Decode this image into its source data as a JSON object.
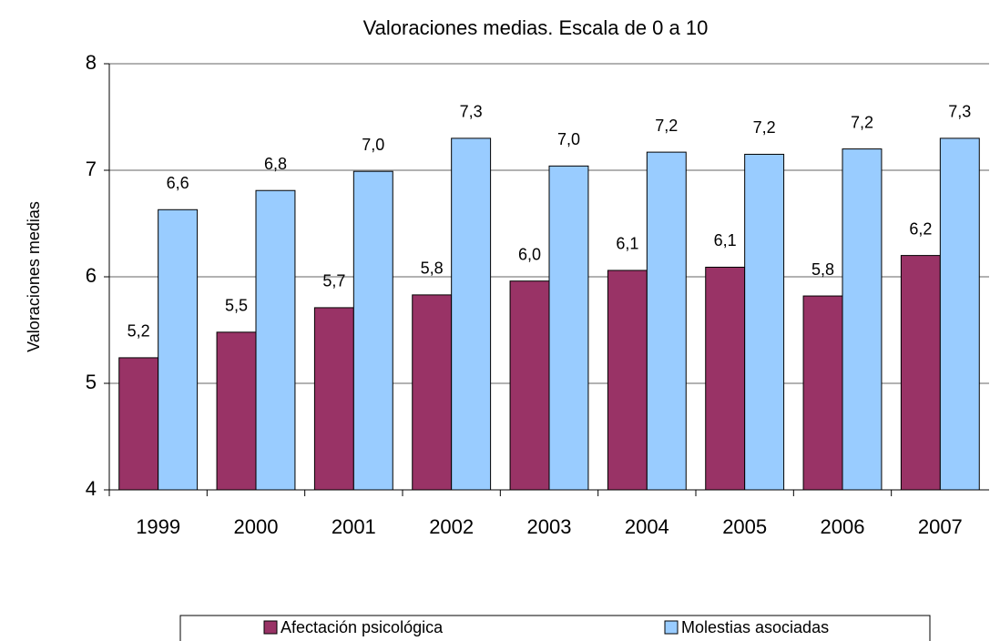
{
  "chart_data": {
    "type": "bar",
    "title": "Valoraciones medias. Escala de 0 a 10",
    "y_label": "Valoraciones medias",
    "categories": [
      "1999",
      "2000",
      "2001",
      "2002",
      "2003",
      "2004",
      "2005",
      "2006",
      "2007"
    ],
    "series": [
      {
        "name": "Afectación psicológica",
        "color": "#993366",
        "values": [
          5.24,
          5.48,
          5.71,
          5.83,
          5.96,
          6.06,
          6.09,
          5.82,
          6.2
        ],
        "value_labels": [
          "5,2",
          "5,5",
          "5,7",
          "5,8",
          "6,0",
          "6,1",
          "6,1",
          "5,8",
          "6,2"
        ]
      },
      {
        "name": "Molestias asociadas",
        "color": "#99ccff",
        "values": [
          6.63,
          6.81,
          6.99,
          7.3,
          7.04,
          7.17,
          7.15,
          7.2,
          7.3
        ],
        "value_labels": [
          "6,6",
          "6,8",
          "7,0",
          "7,3",
          "7,0",
          "7,2",
          "7,2",
          "7,2",
          "7,3"
        ]
      }
    ],
    "ylim": [
      4,
      8
    ],
    "yticks": [
      4,
      5,
      6,
      7,
      8
    ],
    "grid": true,
    "legend": "bottom"
  }
}
